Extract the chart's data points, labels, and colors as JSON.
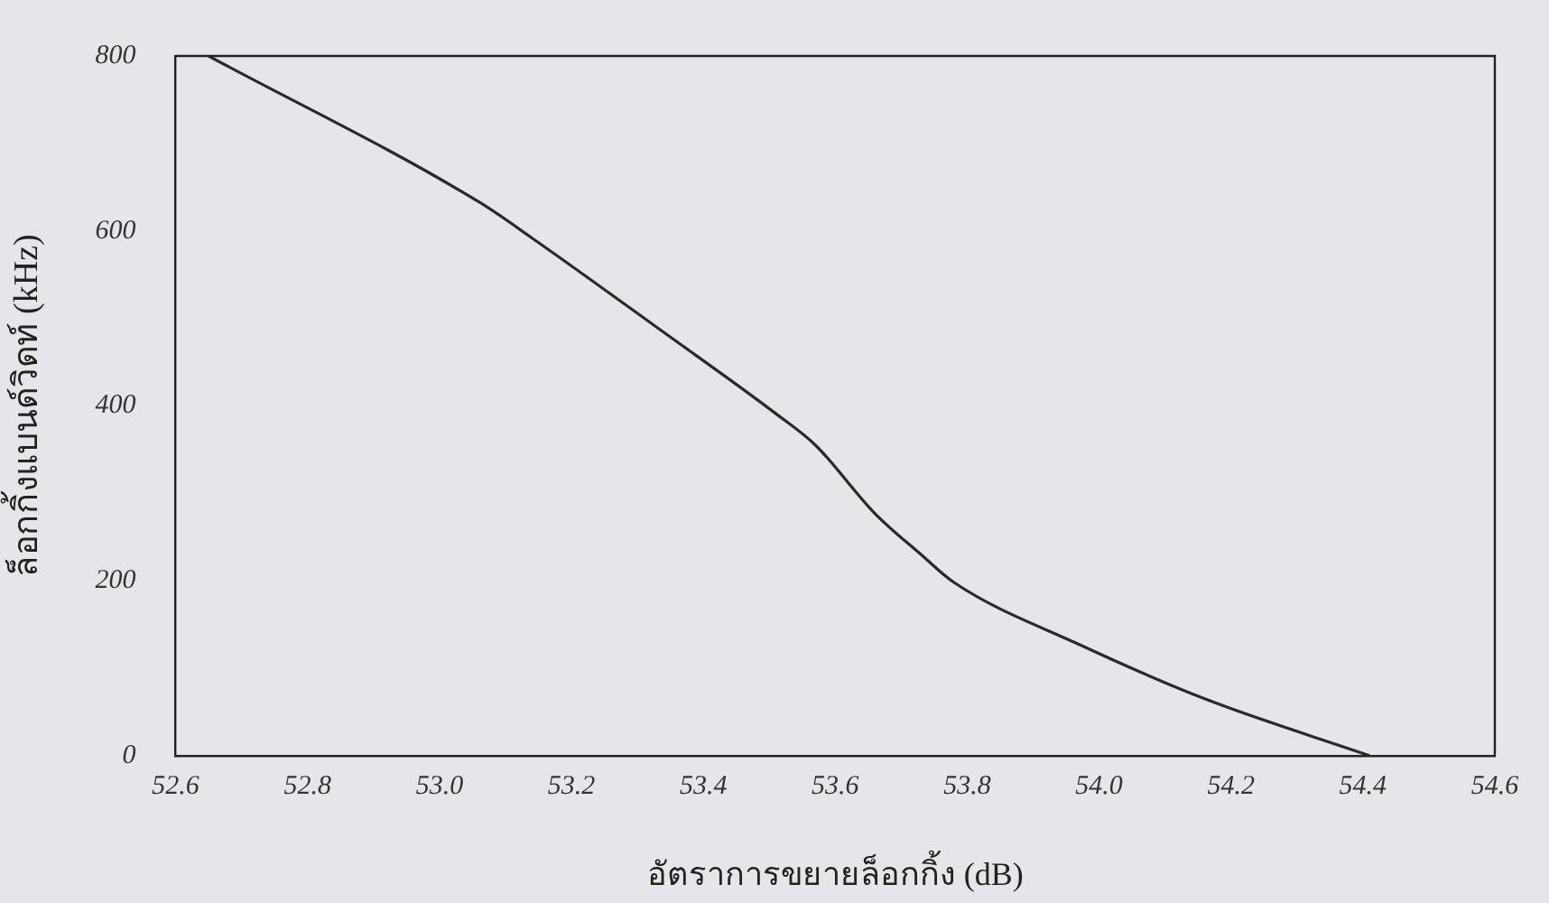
{
  "chart_data": {
    "type": "line",
    "xlabel": "อัตราการขยายล็อกกิ้ง (dB)",
    "ylabel": "ล็อกกิ้งแบนด์วิดท์ (kHz)",
    "series": [
      {
        "color": "#2a2a2a",
        "x": [
          52.65,
          53.06,
          53.14,
          53.34,
          53.51,
          53.57,
          53.66,
          53.73,
          53.78,
          53.97,
          54.16,
          54.41
        ],
        "values": [
          800,
          633,
          592,
          484,
          391,
          355,
          277,
          230,
          198,
          127,
          65,
          0
        ]
      }
    ],
    "xlim": [
      52.6,
      54.6
    ],
    "xticks": [
      {
        "value": 52.6,
        "label": "52.6"
      },
      {
        "value": 52.8,
        "label": "52.8"
      },
      {
        "value": 53.0,
        "label": "53.0"
      },
      {
        "value": 53.2,
        "label": "53.2"
      },
      {
        "value": 53.4,
        "label": "53.4"
      },
      {
        "value": 53.6,
        "label": "53.6"
      },
      {
        "value": 53.8,
        "label": "53.8"
      },
      {
        "value": 54.0,
        "label": "54.0"
      },
      {
        "value": 54.2,
        "label": "54.2"
      },
      {
        "value": 54.4,
        "label": "54.4"
      },
      {
        "value": 54.6,
        "label": "54.6"
      }
    ],
    "ylim": [
      0,
      800
    ],
    "yticks": [
      0,
      200,
      400,
      600,
      800
    ],
    "grid": false,
    "legend": false,
    "marker": "none",
    "line_style": "solid"
  }
}
